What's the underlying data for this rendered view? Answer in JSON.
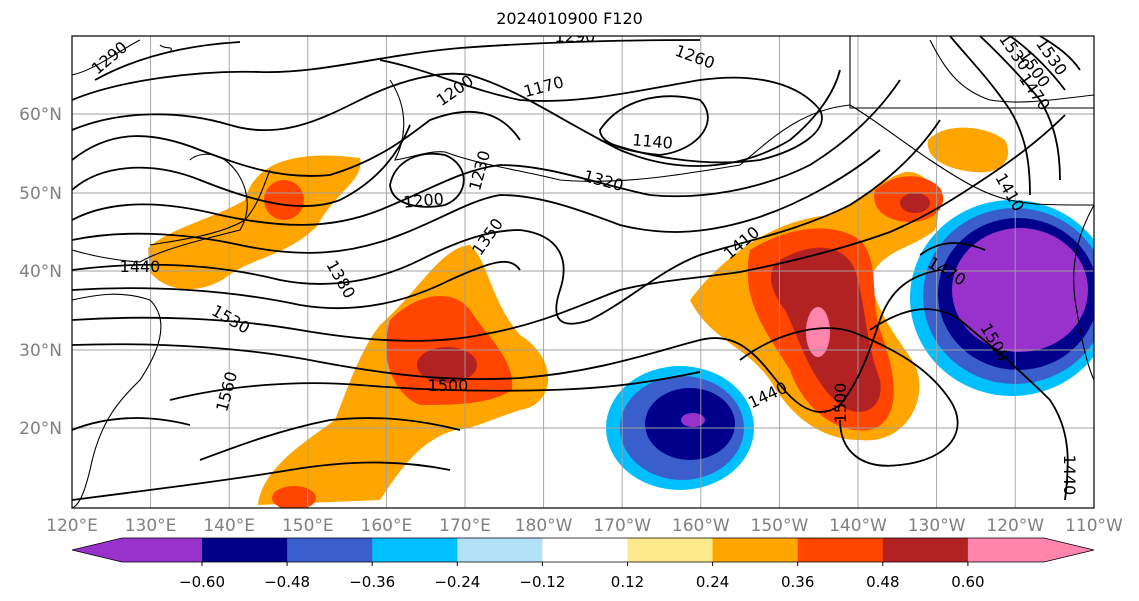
{
  "title": "2024010900 F120",
  "lat_labels": [
    "60°N",
    "50°N",
    "40°N",
    "30°N",
    "20°N"
  ],
  "lon_labels": [
    "120°E",
    "130°E",
    "140°E",
    "150°E",
    "160°E",
    "170°E",
    "180°W",
    "170°W",
    "160°W",
    "150°W",
    "140°W",
    "130°W",
    "120°W",
    "110°W"
  ],
  "contour_labels": [
    "1290",
    "1290",
    "1260",
    "1200",
    "1170",
    "1530",
    "1500",
    "1470",
    "1140",
    "1230",
    "1320",
    "1200",
    "1440",
    "1410",
    "1350",
    "1410",
    "1380",
    "1440",
    "1470",
    "1530",
    "1500",
    "1560",
    "1440",
    "1500",
    "1530",
    "1500"
  ],
  "colorbar": {
    "ticks": [
      "−0.60",
      "−0.48",
      "−0.36",
      "−0.24",
      "−0.12",
      "0.12",
      "0.24",
      "0.36",
      "0.48",
      "0.60"
    ],
    "colors": [
      "#9932cc",
      "#00008b",
      "#3a5fcd",
      "#00bfff",
      "#b2e2fa",
      "#ffffff",
      "#fde88a",
      "#ffa500",
      "#ff4500",
      "#b22222",
      "#ff85ad"
    ]
  },
  "colors": {
    "contour": "#000000",
    "coastline": "#000000",
    "grid": "#a0a0a0",
    "tick_label": "#808080"
  }
}
